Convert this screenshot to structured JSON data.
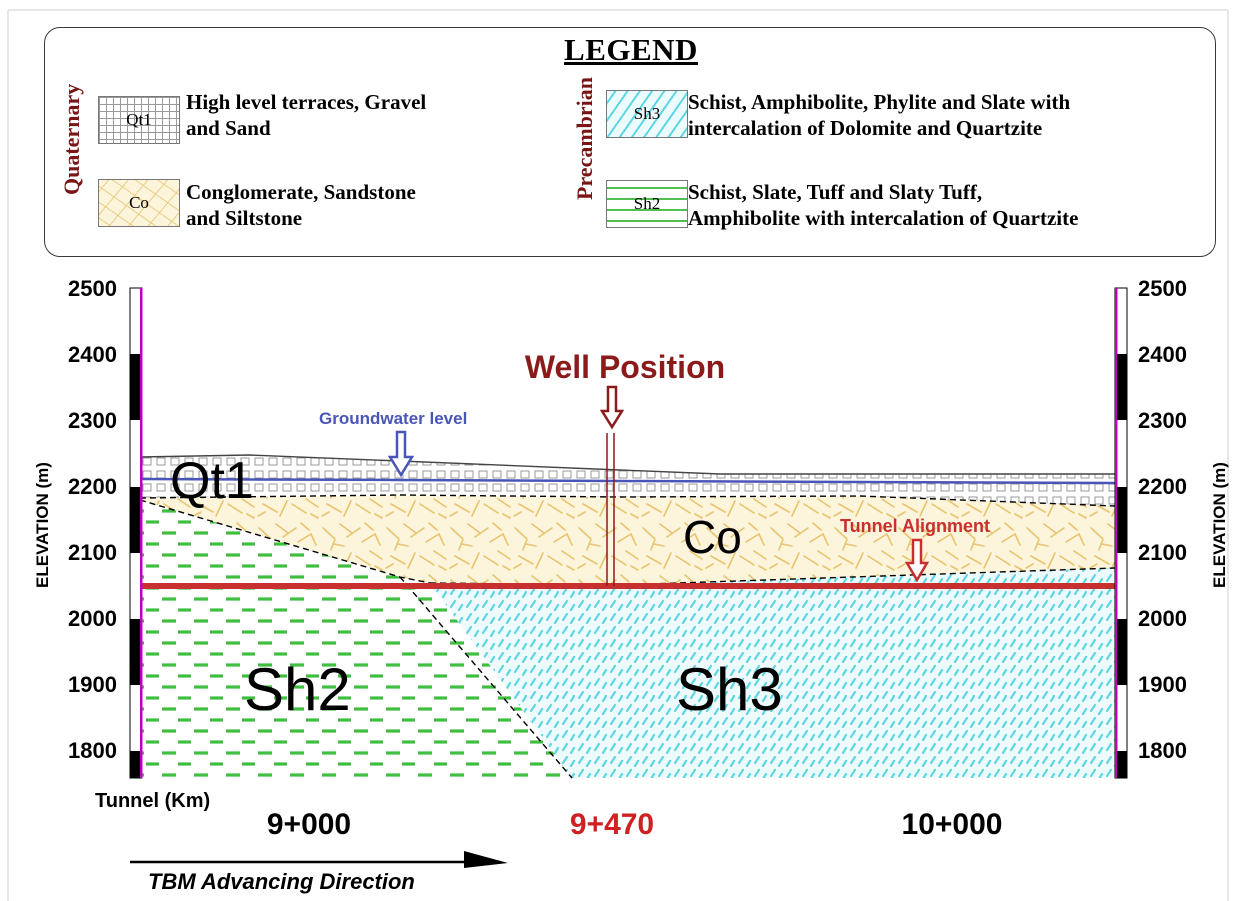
{
  "legend": {
    "title": "LEGEND",
    "groups": [
      {
        "era": "Quaternary",
        "units": [
          {
            "code": "Qt1",
            "line1": "High level terraces, Gravel",
            "line2": "and Sand"
          },
          {
            "code": "Co",
            "line1": "Conglomerate, Sandstone",
            "line2": "and Siltstone"
          }
        ]
      },
      {
        "era": "Precambrian",
        "units": [
          {
            "code": "Sh3",
            "line1": "Schist, Amphibolite, Phylite and Slate with",
            "line2": "intercalation of Dolomite and Quartzite"
          },
          {
            "code": "Sh2",
            "line1": "Schist, Slate, Tuff and Slaty Tuff,",
            "line2": "Amphibolite with intercalation of Quartzite"
          }
        ]
      }
    ]
  },
  "section": {
    "y_axis_label": "ELEVATION (m)",
    "y_ticks": [
      "2500",
      "2400",
      "2300",
      "2200",
      "2100",
      "2000",
      "1900",
      "1800"
    ],
    "x_axis_label": "Tunnel (Km)",
    "x_ticks": [
      {
        "label": "9+000",
        "color": "#000000"
      },
      {
        "label": "9+470",
        "color": "#cc2222"
      },
      {
        "label": "10+000",
        "color": "#000000"
      }
    ],
    "unit_labels": {
      "qt1": "Qt1",
      "co": "Co",
      "sh2": "Sh2",
      "sh3": "Sh3"
    },
    "well_label": "Well Position",
    "groundwater_label": "Groundwater level",
    "tunnel_label": "Tunnel Alignment",
    "direction_label": "TBM Advancing Direction"
  },
  "colors": {
    "era_label": "#7a1515",
    "well": "#8b1a1a",
    "groundwater": "#4a55b8",
    "tunnel": "#c83030",
    "ruler_bar": "#c000c0",
    "qt1_grid": "#9a9a9a",
    "co_fill": "#fdf4dc",
    "co_strokes": "#e8c46e",
    "sh3_fill": "#eefbfd",
    "sh3_dashes": "#5fd6e3",
    "sh2_dashes": "#3fbf3f"
  }
}
